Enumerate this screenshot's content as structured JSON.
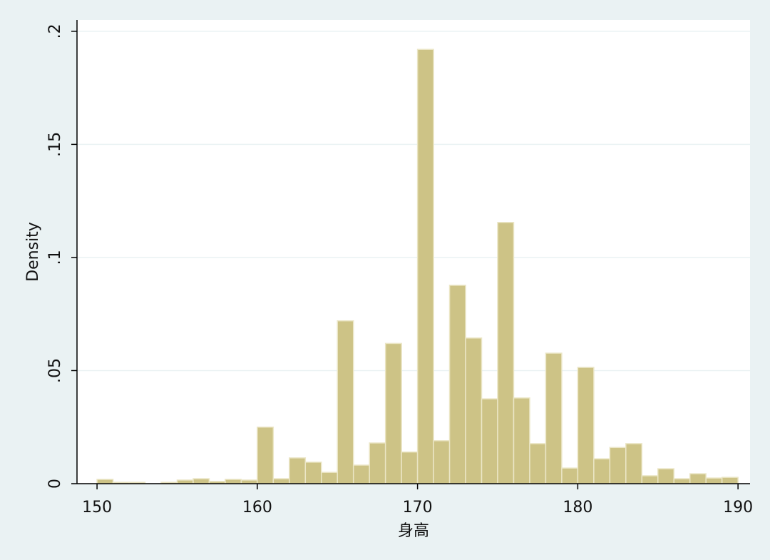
{
  "chart_data": {
    "type": "histogram",
    "x_label": "身高",
    "y_label": "Density",
    "bins": [
      150,
      151,
      152,
      153,
      154,
      155,
      156,
      157,
      158,
      159,
      160,
      161,
      162,
      163,
      164,
      165,
      166,
      167,
      168,
      169,
      170,
      171,
      172,
      173,
      174,
      175,
      176,
      177,
      178,
      179,
      180,
      181,
      182,
      183,
      184,
      185,
      186,
      187,
      188,
      189,
      190
    ],
    "counts": [
      0.0019,
      0.0006,
      0.0006,
      0,
      0.0006,
      0.0016,
      0.0022,
      0.001,
      0.0019,
      0.0016,
      0.025,
      0.0022,
      0.0114,
      0.0095,
      0.005,
      0.072,
      0.0082,
      0.018,
      0.062,
      0.014,
      0.192,
      0.019,
      0.0877,
      0.0644,
      0.0375,
      0.1155,
      0.0379,
      0.0177,
      0.0577,
      0.0069,
      0.0514,
      0.011,
      0.016,
      0.0177,
      0.0035,
      0.0066,
      0.0022,
      0.0044,
      0.0025,
      0.0028
    ],
    "color": "#cdc386",
    "xlim": [
      148.75,
      190.75
    ],
    "ylim": [
      0,
      0.205
    ],
    "xticks": [
      150,
      160,
      170,
      180,
      190
    ],
    "yticks": [
      0,
      {
        "value": 0.05,
        "label": ".05"
      },
      {
        "value": 0.1,
        "label": ".1"
      },
      {
        "value": 0.15,
        "label": ".15"
      },
      {
        "value": 0.2,
        "label": ".2"
      }
    ],
    "grid": true
  }
}
